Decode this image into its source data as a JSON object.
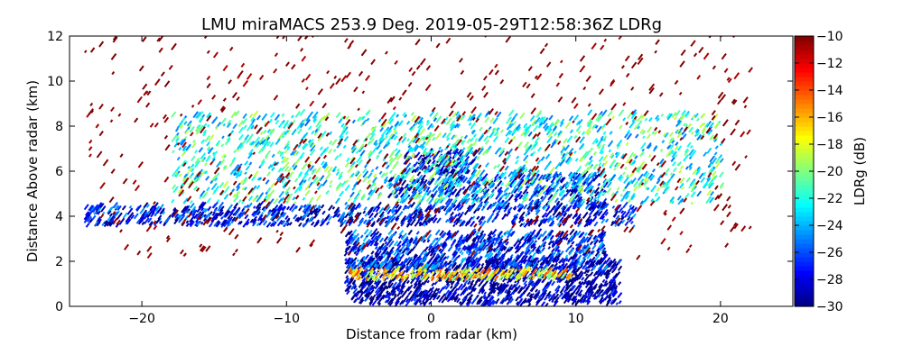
{
  "chart_data": {
    "type": "heatmap",
    "title": "LMU miraMACS 253.9 Deg. 2019-05-29T12:58:36Z  LDRg",
    "xlabel": "Distance from radar (km)",
    "ylabel": "Distance Above radar  (km)",
    "xlim": [
      -25,
      25
    ],
    "ylim": [
      0,
      12
    ],
    "xticks": [
      -20,
      -10,
      0,
      10,
      20
    ],
    "xtick_labels": [
      "−20",
      "−10",
      "0",
      "10",
      "20"
    ],
    "yticks": [
      0,
      2,
      4,
      6,
      8,
      10,
      12
    ],
    "ytick_labels": [
      "0",
      "2",
      "4",
      "6",
      "8",
      "10",
      "12"
    ],
    "colorbar": {
      "label": "LDRg (dB)",
      "range": [
        -30,
        -10
      ],
      "ticks": [
        -30,
        -28,
        -26,
        -24,
        -22,
        -20,
        -18,
        -16,
        -14,
        -12,
        -10
      ],
      "tick_labels": [
        "−30",
        "−28",
        "−26",
        "−24",
        "−22",
        "−20",
        "−18",
        "−16",
        "−14",
        "−12",
        "−10"
      ],
      "colormap": "jet"
    },
    "grid": false,
    "features": [
      {
        "x": [
          -6,
          13
        ],
        "y": [
          0,
          2.0
        ],
        "ldr": -29.5,
        "density": 1.0
      },
      {
        "x": [
          -6,
          10
        ],
        "y": [
          1.1,
          1.6
        ],
        "ldr": -17,
        "density": 1.0
      },
      {
        "x": [
          -6,
          12
        ],
        "y": [
          1.6,
          3.2
        ],
        "ldr": -27,
        "density": 0.95
      },
      {
        "x": [
          -24,
          14
        ],
        "y": [
          3.5,
          4.4
        ],
        "ldr": -27.5,
        "density": 0.8
      },
      {
        "x": [
          -2,
          3
        ],
        "y": [
          5.8,
          6.8
        ],
        "ldr": -28.5,
        "density": 0.9
      },
      {
        "x": [
          -3,
          1
        ],
        "y": [
          4.8,
          5.6
        ],
        "ldr": -28,
        "density": 0.9
      },
      {
        "x": [
          1,
          12
        ],
        "y": [
          4.2,
          5.8
        ],
        "ldr": -27,
        "density": 0.7
      },
      {
        "x": [
          -18,
          20
        ],
        "y": [
          4.5,
          8.5
        ],
        "ldr": -22,
        "density": 0.35
      },
      {
        "x": [
          -24,
          22
        ],
        "y": [
          2,
          12
        ],
        "ldr": -10,
        "density": 0.04
      }
    ]
  }
}
